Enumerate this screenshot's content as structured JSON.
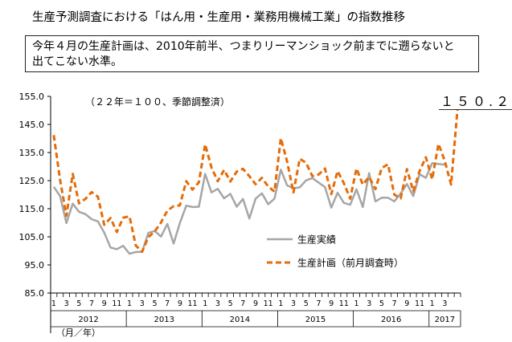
{
  "page": {
    "title": "生産予測調査における「はん用・生産用・業務用機械工業」の指数推移",
    "note_lines": [
      "今年４月の生産計画は、2010年前半、つまりリーマンショック前までに遡らないと",
      "出てこない水準。"
    ]
  },
  "chart_data": {
    "type": "line",
    "title": "",
    "subtitle": "（２２年＝１００、季節調整済）",
    "xlabel": "（月／年）",
    "ylabel": "",
    "ylim": [
      85,
      155
    ],
    "yticks": [
      "155.0",
      "145.0",
      "135.0",
      "125.0",
      "115.0",
      "105.0",
      "95.0",
      "85.0"
    ],
    "month_labels": [
      "1",
      "3",
      "5",
      "7",
      "9",
      "11",
      "1",
      "3",
      "5",
      "7",
      "9",
      "11",
      "1",
      "3",
      "5",
      "7",
      "9",
      "11",
      "1",
      "3",
      "5",
      "7",
      "9",
      "11",
      "1",
      "3",
      "5",
      "7",
      "9",
      "11",
      "1",
      "3"
    ],
    "years": [
      "2012",
      "2013",
      "2014",
      "2015",
      "2016",
      "2017"
    ],
    "grid": false,
    "legend_position": "center-right",
    "annotation": "１５０.２",
    "series": [
      {
        "name": "生産実績",
        "color": "#a6a6a6",
        "style": "solid",
        "values": [
          122.8,
          119.5,
          109.9,
          116.8,
          113.9,
          113.1,
          111.3,
          110.5,
          106.5,
          101.2,
          100.6,
          101.8,
          99.0,
          99.6,
          99.7,
          106.4,
          107.1,
          105.1,
          109.6,
          102.6,
          109.9,
          116.1,
          115.6,
          115.7,
          127.4,
          120.8,
          122.1,
          118.7,
          120.3,
          115.7,
          118.5,
          111.5,
          118.6,
          120.5,
          116.6,
          118.6,
          128.9,
          123.3,
          122.3,
          122.6,
          125.1,
          125.9,
          124.3,
          122.7,
          115.4,
          120.7,
          117.1,
          116.4,
          121.9,
          115.6,
          127.7,
          117.6,
          118.9,
          118.9,
          117.6,
          120.5,
          123.8,
          119.5,
          127.3,
          126.0,
          131.2,
          130.9,
          130.7
        ]
      },
      {
        "name": "生産計画（前月調査時）",
        "color": "#e46c0a",
        "style": "dashed",
        "values": [
          141.2,
          125.2,
          112.5,
          127.4,
          116.9,
          118.5,
          120.9,
          119.3,
          109.3,
          111.7,
          106.7,
          111.8,
          112.3,
          101.9,
          99.7,
          104.9,
          106.9,
          110.1,
          114.3,
          115.9,
          116.2,
          124.8,
          121.8,
          124.4,
          137.9,
          129.7,
          124.8,
          128.8,
          124.7,
          128.2,
          129.2,
          126.6,
          123.7,
          126.0,
          122.9,
          121.1,
          140.1,
          131.8,
          120.8,
          132.8,
          131.3,
          126.6,
          127.2,
          129.3,
          120.2,
          128.4,
          124.1,
          118.6,
          129.3,
          123.6,
          126.3,
          122.0,
          129.5,
          130.8,
          120.0,
          118.7,
          129.1,
          121.2,
          128.4,
          133.3,
          125.5,
          138.1,
          132.0,
          123.6,
          150.2
        ]
      }
    ]
  }
}
